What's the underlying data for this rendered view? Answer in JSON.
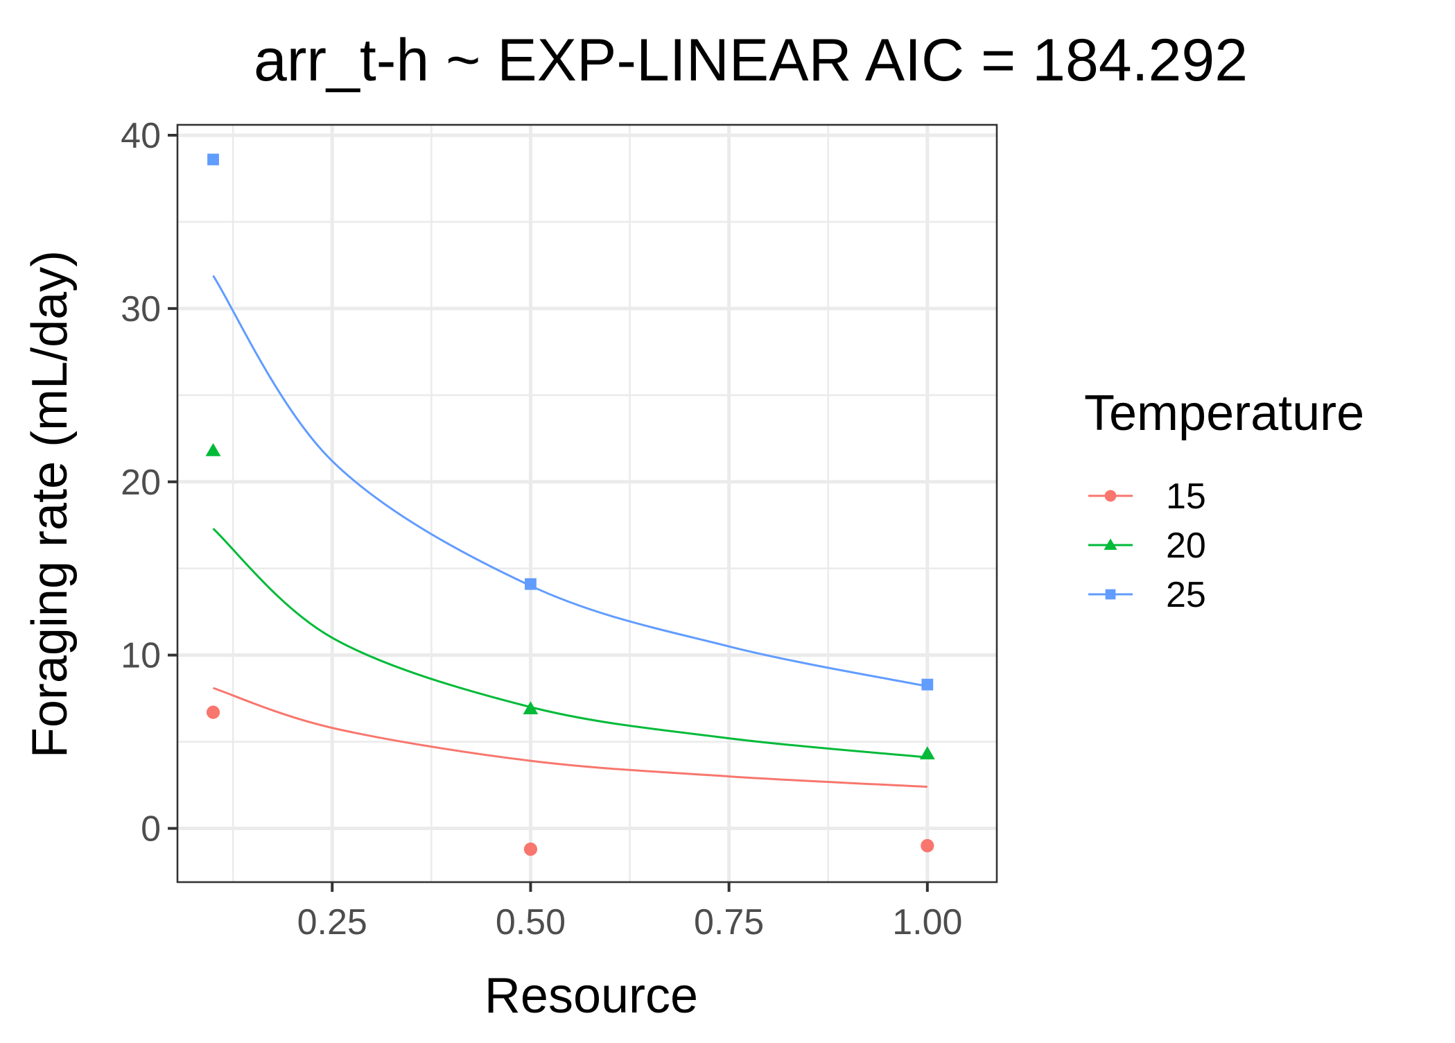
{
  "chart_data": {
    "type": "scatter",
    "title": "arr_t-h ~ EXP-LINEAR AIC = 184.292",
    "xlabel": "Resource",
    "ylabel": "Foraging rate (mL/day)",
    "xlim": [
      0.055,
      1.0875
    ],
    "ylim": [
      -3.1,
      40.6
    ],
    "x_ticks": [
      0.25,
      0.5,
      0.75,
      1.0
    ],
    "x_tick_labels": [
      "0.25",
      "0.50",
      "0.75",
      "1.00"
    ],
    "y_ticks": [
      0,
      10,
      20,
      30,
      40
    ],
    "y_tick_labels": [
      "0",
      "10",
      "20",
      "30",
      "40"
    ],
    "grid": true,
    "legend": {
      "title": "Temperature",
      "position": "right"
    },
    "series": [
      {
        "name": "15",
        "color": "#F8766D",
        "marker": "circle",
        "points": [
          {
            "x": 0.1,
            "y": 6.7
          },
          {
            "x": 0.5,
            "y": -1.2
          },
          {
            "x": 1.0,
            "y": -1.0
          }
        ],
        "fit": {
          "x": [
            0.1,
            0.25,
            0.5,
            0.75,
            1.0
          ],
          "y": [
            8.1,
            5.8,
            3.9,
            3.0,
            2.4
          ]
        }
      },
      {
        "name": "20",
        "color": "#00BA38",
        "marker": "triangle",
        "points": [
          {
            "x": 0.1,
            "y": 21.8
          },
          {
            "x": 0.5,
            "y": 6.9
          },
          {
            "x": 1.0,
            "y": 4.3
          }
        ],
        "fit": {
          "x": [
            0.1,
            0.25,
            0.5,
            0.75,
            1.0
          ],
          "y": [
            17.3,
            11.0,
            7.0,
            5.2,
            4.1
          ]
        }
      },
      {
        "name": "25",
        "color": "#619CFF",
        "marker": "square",
        "points": [
          {
            "x": 0.1,
            "y": 38.6
          },
          {
            "x": 0.5,
            "y": 14.1
          },
          {
            "x": 1.0,
            "y": 8.3
          }
        ],
        "fit": {
          "x": [
            0.1,
            0.25,
            0.5,
            0.75,
            1.0
          ],
          "y": [
            31.9,
            21.2,
            14.0,
            10.5,
            8.2
          ]
        }
      }
    ]
  }
}
